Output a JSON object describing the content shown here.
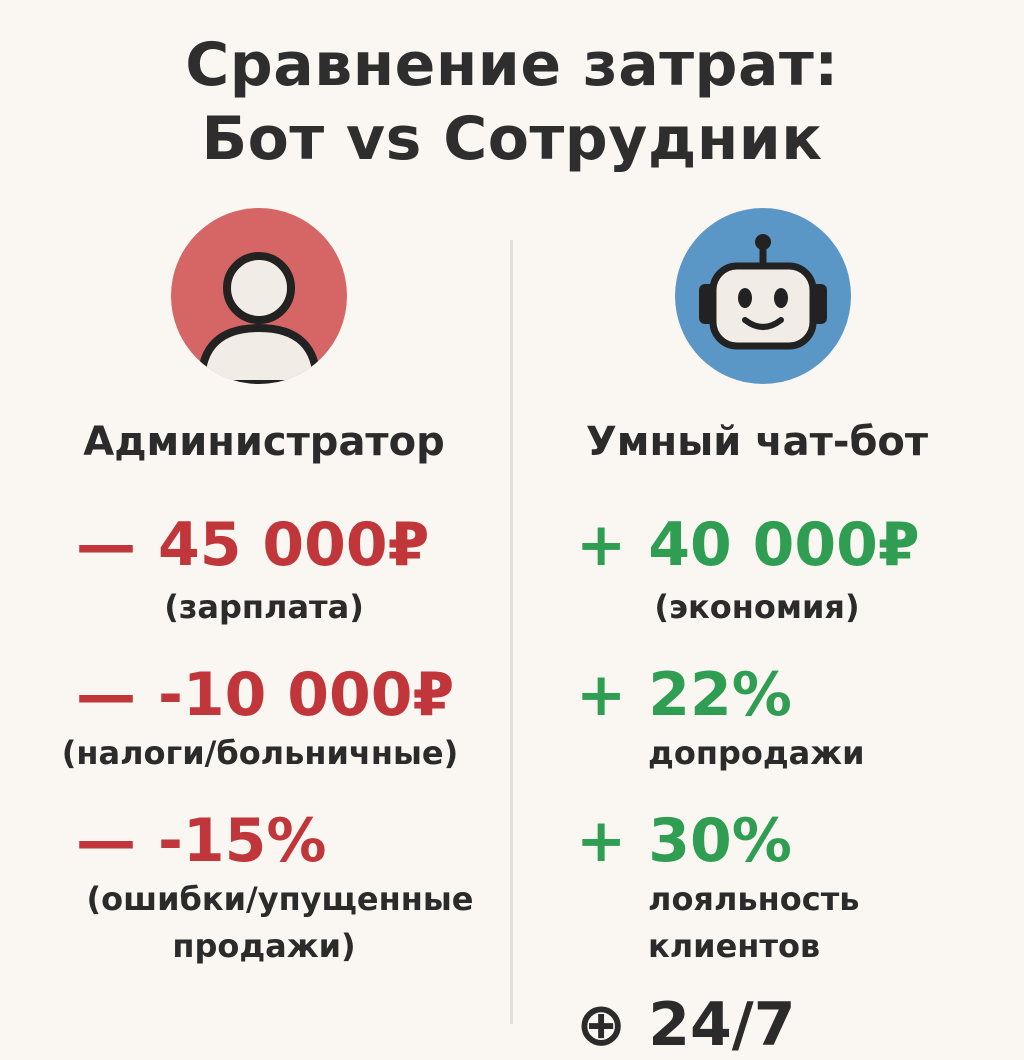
{
  "title": {
    "line1": "Сравнение затрат:",
    "line2": "Бот vs Сотрудник"
  },
  "colors": {
    "background": "#faf7f2",
    "negative": "#c0363a",
    "positive": "#2f9e52",
    "person_circle": "#d66565",
    "robot_circle": "#5b97c6"
  },
  "left": {
    "icon": "person-icon",
    "title": "Администратор",
    "items": [
      {
        "sign": "—",
        "value": "45 000₽",
        "note": "(зарплата)"
      },
      {
        "sign": "—",
        "value": "-10 000₽",
        "note": "(налоги/больничные)"
      },
      {
        "sign": "—",
        "value": "-15%",
        "note_line1": "(ошибки/упущенные",
        "note_line2": "продажи)"
      }
    ]
  },
  "right": {
    "icon": "robot-icon",
    "title": "Умный чат-бот",
    "items": [
      {
        "sign": "+",
        "value": "40 000₽",
        "note": "(экономия)"
      },
      {
        "sign": "+",
        "value": "22%",
        "note": "допродажи"
      },
      {
        "sign": "+",
        "value": "30%",
        "note_line1": "лояльность",
        "note_line2": "клиентов"
      },
      {
        "sign": "⊕",
        "value": "24/7"
      }
    ]
  }
}
